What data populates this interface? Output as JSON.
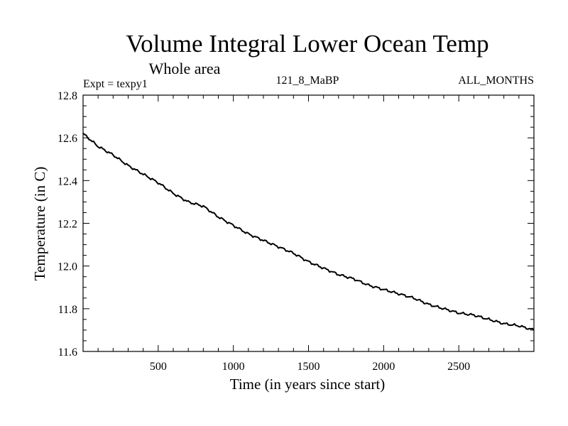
{
  "chart_data": {
    "type": "line",
    "title": "Volume Integral Lower Ocean Temp",
    "subtitle": "Whole area",
    "info_left": "Expt = texpy1",
    "info_center": "121_8_MaBP",
    "info_right": "ALL_MONTHS",
    "xlabel": "Time (in years since start)",
    "ylabel": "Temperature (in C)",
    "xlim": [
      0,
      3000
    ],
    "ylim": [
      11.6,
      12.8
    ],
    "x_ticks": [
      {
        "value": 500,
        "label": "500"
      },
      {
        "value": 1000,
        "label": "1000"
      },
      {
        "value": 1500,
        "label": "1500"
      },
      {
        "value": 2000,
        "label": "2000"
      },
      {
        "value": 2500,
        "label": "2500"
      }
    ],
    "y_ticks": [
      {
        "value": 11.6,
        "label": "11.6"
      },
      {
        "value": 11.8,
        "label": "11.8"
      },
      {
        "value": 12.0,
        "label": "12.0"
      },
      {
        "value": 12.2,
        "label": "12.2"
      },
      {
        "value": 12.4,
        "label": "12.4"
      },
      {
        "value": 12.6,
        "label": "12.6"
      },
      {
        "value": 12.8,
        "label": "12.8"
      }
    ],
    "grid": false,
    "series": [
      {
        "color": "#000000",
        "x": [
          0,
          100,
          200,
          300,
          400,
          500,
          600,
          700,
          800,
          900,
          1000,
          1100,
          1200,
          1300,
          1400,
          1500,
          1600,
          1700,
          1800,
          1900,
          2000,
          2100,
          2200,
          2300,
          2400,
          2500,
          2600,
          2700,
          2800,
          2900,
          3000
        ],
        "y": [
          12.62,
          12.56,
          12.52,
          12.47,
          12.43,
          12.39,
          12.34,
          12.3,
          12.28,
          12.23,
          12.19,
          12.15,
          12.12,
          12.09,
          12.06,
          12.02,
          11.99,
          11.96,
          11.94,
          11.91,
          11.89,
          11.87,
          11.85,
          11.82,
          11.8,
          11.78,
          11.77,
          11.75,
          11.73,
          11.72,
          11.7
        ]
      }
    ]
  }
}
